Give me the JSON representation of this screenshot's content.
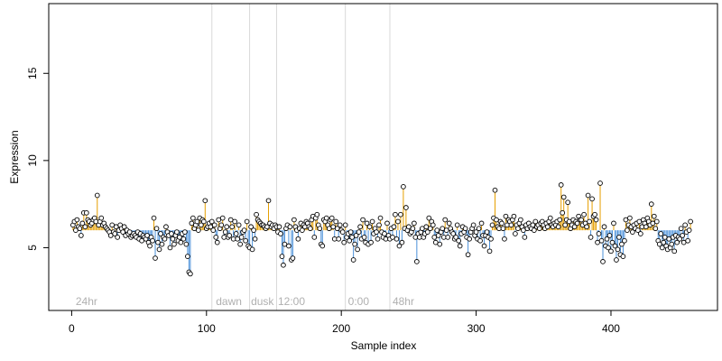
{
  "chart_data": {
    "type": "scatter",
    "title": "",
    "xlabel": "Sample index",
    "ylabel": "Expression",
    "xlim": [
      -17,
      479
    ],
    "ylim": [
      1.4,
      19.0
    ],
    "x_ticks": [
      0,
      100,
      200,
      300,
      400
    ],
    "y_ticks": [
      5,
      10,
      15
    ],
    "baseline": 6.0,
    "colors": {
      "above": "#E69F00",
      "below": "#4A90D9",
      "divider": "#d9d9d9",
      "period_label": "#b0b0b0",
      "point_fill": "#ffffff",
      "point_stroke": "#000000"
    },
    "dividers": [
      104,
      132,
      152,
      203,
      236
    ],
    "period_labels": [
      {
        "x": 3,
        "text": "24hr"
      },
      {
        "x": 107,
        "text": "dawn"
      },
      {
        "x": 133,
        "text": "dusk"
      },
      {
        "x": 153,
        "text": "12:00"
      },
      {
        "x": 205,
        "text": "0:00"
      },
      {
        "x": 238,
        "text": "48hr"
      }
    ],
    "series": [
      {
        "y": [
          6.3,
          6.5,
          6.0,
          6.6,
          6.2,
          6.1,
          5.7,
          6.4,
          7.0,
          6.2,
          7.0,
          6.6,
          6.5,
          6.3,
          6.4,
          6.6,
          6.7,
          6.5,
          8.0,
          6.3,
          6.5,
          6.7,
          6.3,
          6.4,
          6.2,
          6.1,
          6.0,
          5.9,
          5.7,
          6.3,
          5.9,
          5.8,
          6.2,
          5.6,
          6.0,
          6.3,
          6.1,
          5.9,
          6.2,
          5.7,
          6.0,
          5.8,
          5.9,
          5.6,
          5.7,
          5.8,
          5.7,
          5.6,
          5.9,
          5.5,
          5.8,
          5.4,
          5.7,
          5.6,
          5.5,
          5.7,
          5.3,
          5.1,
          5.6,
          5.4,
          6.7,
          4.4,
          6.1,
          5.3,
          4.9,
          5.8,
          5.2,
          5.6,
          5.5,
          6.2,
          5.9,
          5.7,
          5.0,
          5.8,
          5.5,
          5.2,
          5.7,
          5.9,
          5.4,
          5.6,
          5.3,
          5.8,
          5.5,
          5.9,
          5.2,
          4.5,
          3.6,
          3.5,
          6.4,
          6.7,
          6.1,
          6.3,
          6.5,
          6.0,
          6.7,
          6.3,
          6.6,
          6.5,
          7.7,
          6.1,
          6.2,
          6.4,
          6.2,
          6.5,
          6.0,
          6.3,
          5.6,
          5.3,
          6.6,
          6.1,
          6.3,
          6.7,
          5.6,
          5.9,
          6.2,
          5.6,
          5.7,
          6.6,
          6.2,
          5.5,
          6.5,
          5.8,
          5.5,
          6.3,
          5.2,
          5.6,
          5.9,
          6.0,
          5.4,
          6.5,
          5.1,
          5.0,
          6.2,
          4.9,
          6.0,
          5.5,
          6.9,
          6.6,
          6.5,
          6.4,
          6.3,
          6.3,
          6.2,
          6.1,
          6.2,
          7.7,
          6.4,
          6.2,
          6.3,
          6.1,
          6.3,
          6.2,
          5.9,
          6.2,
          5.8,
          4.5,
          4.0,
          5.2,
          6.1,
          6.3,
          5.1,
          6.2,
          4.3,
          4.4,
          6.6,
          6.2,
          6.0,
          5.5,
          6.1,
          6.4,
          6.0,
          6.3,
          6.2,
          6.5,
          6.4,
          6.2,
          6.1,
          6.6,
          6.8,
          5.6,
          6.7,
          6.9,
          6.3,
          6.1,
          5.2,
          5.1,
          6.6,
          6.5,
          6.7,
          6.3,
          6.1,
          6.6,
          6.7,
          6.2,
          5.5,
          6.5,
          6.1,
          5.5,
          6.3,
          6.0,
          5.9,
          5.3,
          6.3,
          5.6,
          5.8,
          5.4,
          5.9,
          5.6,
          4.3,
          5.2,
          5.7,
          4.9,
          5.9,
          6.2,
          5.5,
          6.6,
          5.6,
          5.3,
          6.4,
          5.2,
          6.2,
          5.3,
          6.5,
          5.8,
          6.1,
          5.9,
          5.5,
          6.3,
          6.7,
          5.9,
          5.6,
          5.8,
          5.5,
          6.4,
          5.7,
          5.5,
          6.1,
          5.6,
          6.2,
          6.9,
          5.5,
          6.5,
          5.1,
          6.9,
          5.3,
          8.5,
          6.1,
          7.3,
          6.0,
          6.2,
          5.8,
          5.9,
          6.1,
          6.4,
          5.6,
          4.2,
          5.8,
          5.6,
          5.9,
          6.1,
          5.6,
          5.8,
          6.2,
          5.9,
          6.7,
          6.1,
          6.5,
          6.3,
          5.6,
          5.3,
          6.0,
          5.7,
          5.2,
          5.9,
          6.1,
          5.6,
          6.6,
          6.0,
          5.6,
          6.4,
          6.1,
          5.9,
          5.8,
          5.5,
          5.6,
          6.3,
          5.4,
          5.1,
          5.8,
          6.2,
          5.9,
          6.1,
          5.6,
          4.6,
          5.5,
          5.9,
          6.1,
          6.3,
          5.7,
          5.9,
          5.5,
          6.1,
          5.4,
          6.4,
          5.7,
          5.1,
          5.7,
          5.9,
          5.6,
          4.8,
          5.5,
          6.3,
          6.7,
          8.3,
          6.6,
          6.2,
          6.1,
          6.5,
          6.4,
          6.1,
          5.5,
          6.8,
          6.3,
          6.6,
          6.5,
          6.3,
          6.6,
          6.8,
          5.8,
          6.3,
          6.1,
          6.4,
          6.6,
          6.2,
          6.0,
          5.6,
          6.3,
          6.1,
          6.4,
          6.2,
          6.1,
          6.3,
          6.0,
          6.5,
          6.2,
          6.3,
          6.1,
          6.4,
          6.5,
          6.3,
          6.1,
          6.4,
          6.2,
          6.5,
          6.7,
          6.3,
          6.2,
          6.4,
          6.3,
          6.5,
          6.2,
          6.6,
          8.6,
          7.0,
          7.9,
          6.3,
          6.6,
          7.6,
          6.5,
          6.1,
          6.3,
          6.6,
          6.2,
          6.5,
          6.4,
          6.8,
          6.6,
          6.6,
          6.3,
          6.9,
          6.4,
          6.2,
          8.0,
          6.5,
          5.6,
          7.8,
          6.8,
          6.9,
          6.6,
          5.3,
          5.8,
          8.7,
          5.4,
          4.2,
          6.2,
          5.1,
          5.5,
          5.0,
          5.7,
          4.8,
          5.3,
          6.4,
          5.1,
          4.3,
          4.9,
          5.6,
          4.6,
          5.2,
          4.5,
          5.4,
          6.6,
          6.0,
          6.3,
          6.7,
          6.2,
          5.9,
          6.3,
          6.1,
          6.4,
          6.0,
          6.5,
          5.8,
          6.2,
          6.6,
          6.4,
          6.2,
          6.7,
          6.5,
          6.3,
          7.5,
          6.4,
          6.8,
          6.1,
          6.5,
          5.4,
          5.2,
          5.8,
          5.0,
          5.3,
          5.6,
          5.1,
          4.9,
          5.5,
          5.0,
          5.2,
          5.6,
          4.8,
          5.7,
          5.3,
          5.6,
          5.5,
          6.1,
          5.7,
          5.3,
          6.3,
          5.9,
          5.4,
          6.0,
          6.5
        ]
      }
    ]
  }
}
